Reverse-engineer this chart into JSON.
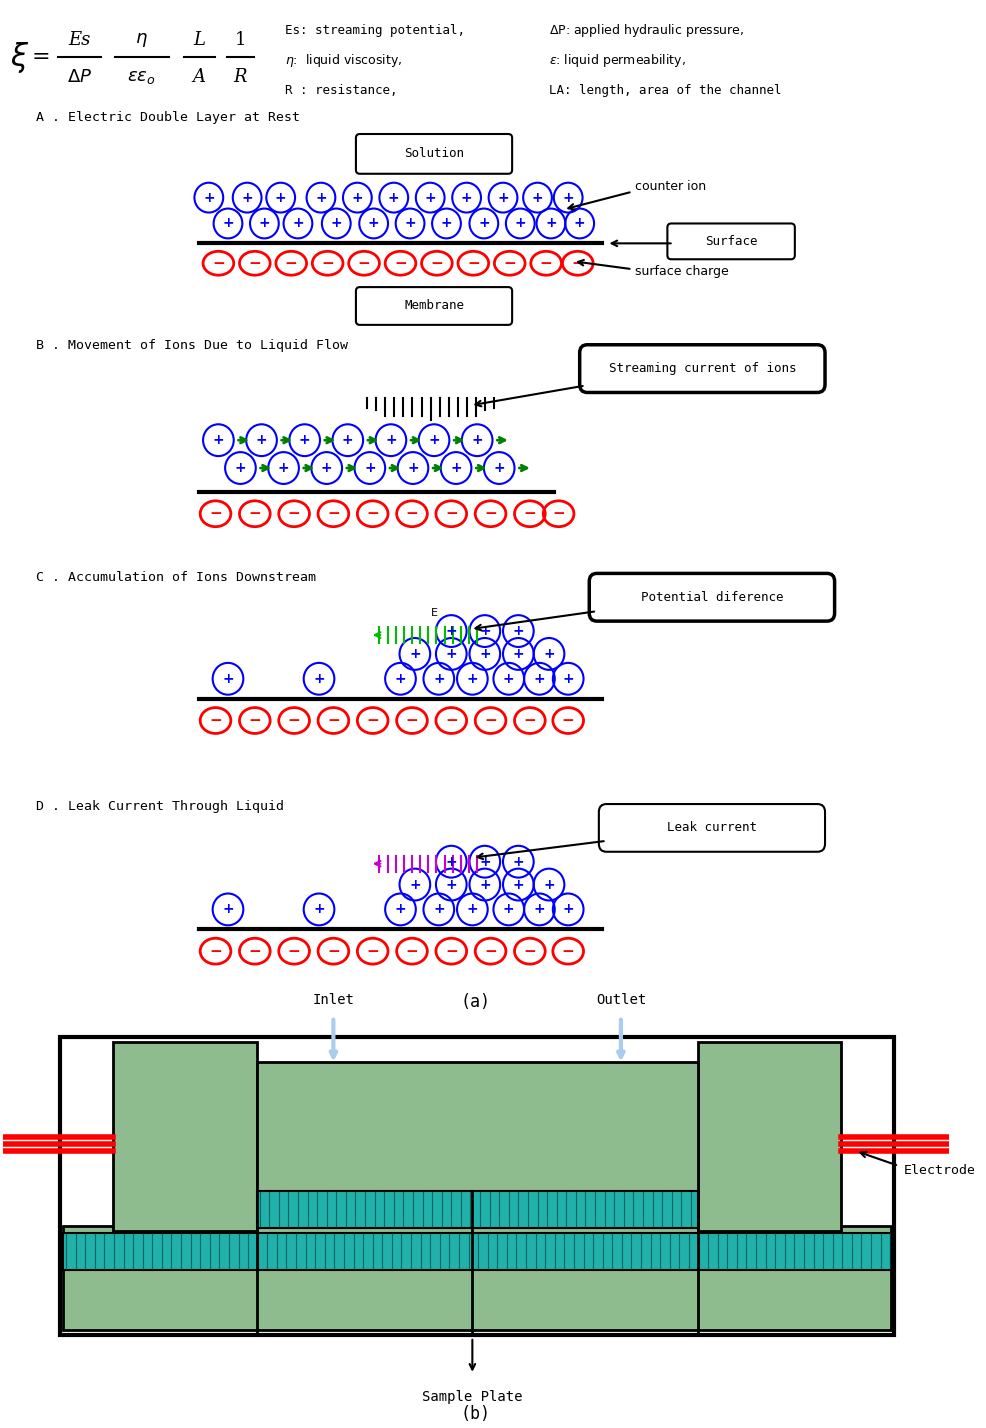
{
  "section_A": "A . Electric Double Layer at Rest",
  "section_B": "B . Movement of Ions Due to Liquid Flow",
  "section_C": "C . Accumulation of Ions Downstream",
  "section_D": "D . Leak Current Through Liquid",
  "label_a": "(a)",
  "label_b": "(b)",
  "label_solution": "Solution",
  "label_membrane": "Membrane",
  "label_surface": "Surface",
  "label_counterion": "counter ion",
  "label_surfacecharge": "surface charge",
  "label_streaming": "Streaming current of ions",
  "label_potential": "Potential diference",
  "label_leak": "Leak current",
  "label_inlet": "Inlet",
  "label_outlet": "Outlet",
  "label_electrode": "Electrode",
  "label_sampleplate": "Sample Plate",
  "bg_color": "#ffffff",
  "blue_ion_color": "#0000ff",
  "red_ion_color": "#ff0000",
  "green_arrow_color": "#008000",
  "green_field_color": "#00bb00",
  "magenta_field_color": "#cc00cc",
  "black_color": "#000000",
  "cell_green": "#8fbc8f",
  "electrode_cyan": "#20b2aa"
}
